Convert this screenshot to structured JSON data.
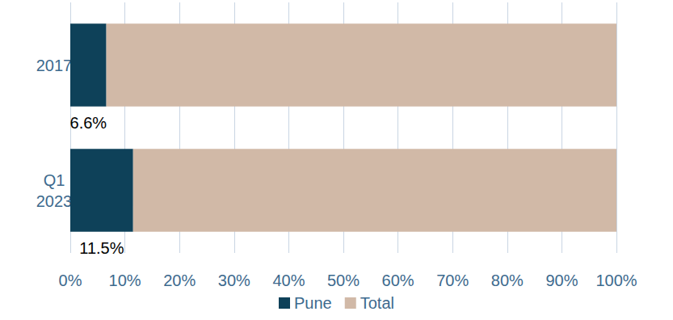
{
  "chart_data": {
    "type": "bar",
    "orientation": "horizontal",
    "stacked": true,
    "categories": [
      "2017",
      "Q1 2023"
    ],
    "series": [
      {
        "name": "Pune",
        "color": "#0e4159",
        "values": [
          6.6,
          11.5
        ],
        "value_labels": [
          "6.6%",
          "11.5%"
        ],
        "data_labels": true
      },
      {
        "name": "Total",
        "color": "#d1b9a7",
        "values": [
          93.4,
          88.5
        ]
      }
    ],
    "xlim": [
      0,
      100
    ],
    "xticks": [
      {
        "value": 0,
        "label": "0%"
      },
      {
        "value": 10,
        "label": "10%"
      },
      {
        "value": 20,
        "label": "20%"
      },
      {
        "value": 30,
        "label": "30%"
      },
      {
        "value": 40,
        "label": "40%"
      },
      {
        "value": 50,
        "label": "50%"
      },
      {
        "value": 60,
        "label": "60%"
      },
      {
        "value": 70,
        "label": "70%"
      },
      {
        "value": 80,
        "label": "80%"
      },
      {
        "value": 90,
        "label": "90%"
      },
      {
        "value": 100,
        "label": "100%"
      }
    ],
    "grid": true,
    "legend": "bottom"
  }
}
